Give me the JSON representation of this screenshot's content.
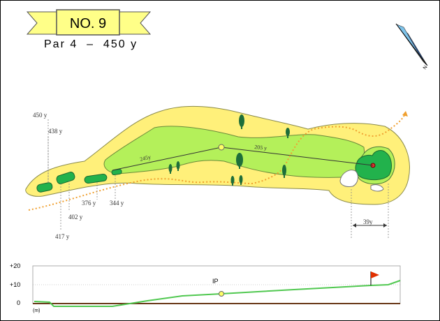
{
  "title": {
    "hole": "NO. 9",
    "par_length": "Par 4  –  450 y"
  },
  "compass": {
    "label": "N",
    "icon": "compass-needle-icon"
  },
  "yardage_markers": {
    "tee_450": "450 y",
    "tee_438": "438 y",
    "marker_417": "417 y",
    "marker_402": "402 y",
    "marker_376": "376 y",
    "marker_344": "344 y"
  },
  "shot_lines": {
    "tee_shot": "245y",
    "approach": "205 y"
  },
  "green_depth": "39y",
  "elevation_profile": {
    "ticks": [
      "+20",
      "+10",
      "0"
    ],
    "unit": "(m)",
    "ip_label": "IP",
    "line_color": "#50c850",
    "flag_color": "#e03000"
  },
  "colors": {
    "rough": "#fff07a",
    "fairway": "#b4f05a",
    "green": "#22b24c",
    "banner": "#ffff88",
    "ob_line": "#f0a030",
    "tree": "#1e6e3a"
  }
}
